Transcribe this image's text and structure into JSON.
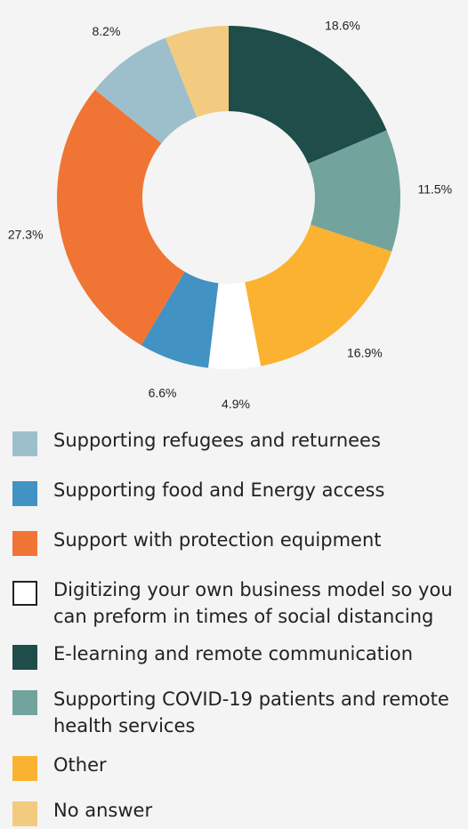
{
  "chart_data": {
    "type": "pie",
    "donut": true,
    "slices": [
      {
        "label": "E-learning and remote communication",
        "value": 18.6,
        "display": "18.6%",
        "color": "#1e4d4a"
      },
      {
        "label": "Supporting COVID-19 patients and remote health services",
        "value": 11.5,
        "display": "11.5%",
        "color": "#72a39d"
      },
      {
        "label": "Other",
        "value": 16.9,
        "display": "16.9%",
        "color": "#fbb231"
      },
      {
        "label": "Digitizing your own business model so you can preform in times of social distancing",
        "value": 4.9,
        "display": "4.9%",
        "color": "#ffffff"
      },
      {
        "label": "Supporting food and Energy access",
        "value": 6.6,
        "display": "6.6%",
        "color": "#4292c3"
      },
      {
        "label": "Support with protection equipment",
        "value": 27.3,
        "display": "27.3%",
        "color": "#f07434"
      },
      {
        "label": "Supporting refugees and returnees",
        "value": 8.2,
        "display": "8.2%",
        "color": "#9dbfcc"
      },
      {
        "label": "No answer",
        "value": 6,
        "display": "6%",
        "color": "#f3cb80"
      }
    ]
  },
  "legend": [
    {
      "text": "Supporting refugees and returnees",
      "color": "#9dbfcc",
      "outlined": false
    },
    {
      "text": "Supporting food and Energy access",
      "color": "#4292c3",
      "outlined": false
    },
    {
      "text": "Support with protection equipment",
      "color": "#f07434",
      "outlined": false
    },
    {
      "text": "Digitizing your own business model so you can preform in times of social distancing",
      "color": "#ffffff",
      "outlined": true
    },
    {
      "text": "E-learning and remote communication",
      "color": "#1e4d4a",
      "outlined": false
    },
    {
      "text": "Supporting COVID-19 patients and remote health services",
      "color": "#72a39d",
      "outlined": false
    },
    {
      "text": "Other",
      "color": "#fbb231",
      "outlined": false
    },
    {
      "text": "No answer",
      "color": "#f3cb80",
      "outlined": false
    }
  ]
}
